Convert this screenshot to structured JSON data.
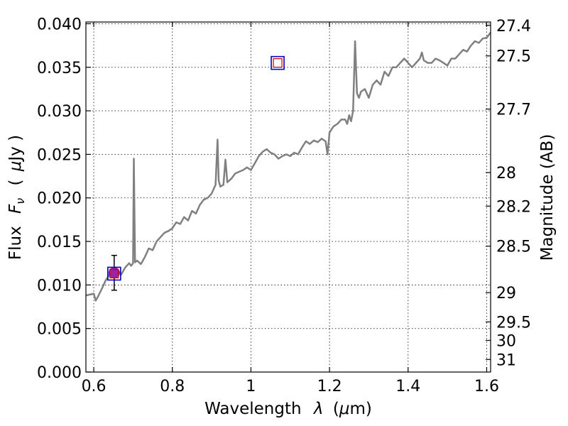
{
  "colors": {
    "spectrum": "#808080",
    "point_fill": "#a020a0",
    "square_outer": "#0000cc",
    "square_inner": "#cc0000",
    "errorbar": "#000000"
  },
  "chart_data": {
    "type": "line",
    "title": "",
    "xlabel_main": "Wavelength",
    "xlabel_symbol": "λ",
    "xlabel_unit_open": "(",
    "xlabel_unit_mu": "μ",
    "xlabel_unit_rest": "m)",
    "ylabel_main": "Flux",
    "ylabel_symbol": "F",
    "ylabel_symbol_sub": "ν",
    "ylabel_unit_open": "(",
    "ylabel_unit_mu": "μ",
    "ylabel_unit_rest": "Jy )",
    "y2label": "Magnitude (AB)",
    "xlim": [
      0.58,
      1.61
    ],
    "ylim": [
      0.0,
      0.0402
    ],
    "grid": true,
    "x_ticks": [
      0.6,
      0.8,
      1.0,
      1.2,
      1.4,
      1.6
    ],
    "x_tick_labels": [
      "0.6",
      "0.8",
      "1",
      "1.2",
      "1.4",
      "1.6"
    ],
    "y_ticks": [
      0.0,
      0.005,
      0.01,
      0.015,
      0.02,
      0.025,
      0.03,
      0.035,
      0.04
    ],
    "y_tick_labels": [
      "0.000",
      "0.005",
      "0.010",
      "0.015",
      "0.020",
      "0.025",
      "0.030",
      "0.035",
      "0.040"
    ],
    "y2_ticks": [
      27.4,
      27.5,
      27.7,
      28,
      28.2,
      28.5,
      29,
      29.5,
      30,
      31
    ],
    "y2_tick_labels": [
      "27.4",
      "27.5",
      "27.7",
      "28",
      "28.2",
      "28.5",
      "29",
      "29.5",
      "30",
      "31"
    ],
    "series": [
      {
        "type": "line",
        "x": [
          0.58,
          0.59,
          0.6,
          0.605,
          0.61,
          0.62,
          0.63,
          0.64,
          0.65,
          0.66,
          0.67,
          0.68,
          0.69,
          0.695,
          0.7,
          0.702,
          0.705,
          0.71,
          0.72,
          0.73,
          0.74,
          0.75,
          0.76,
          0.77,
          0.78,
          0.79,
          0.8,
          0.81,
          0.82,
          0.83,
          0.84,
          0.85,
          0.86,
          0.87,
          0.88,
          0.89,
          0.9,
          0.91,
          0.915,
          0.918,
          0.922,
          0.93,
          0.935,
          0.94,
          0.945,
          0.95,
          0.96,
          0.97,
          0.98,
          0.99,
          1.0,
          1.01,
          1.02,
          1.03,
          1.04,
          1.05,
          1.06,
          1.07,
          1.08,
          1.09,
          1.1,
          1.11,
          1.12,
          1.13,
          1.14,
          1.15,
          1.16,
          1.17,
          1.18,
          1.19,
          1.195,
          1.2,
          1.21,
          1.22,
          1.23,
          1.24,
          1.245,
          1.25,
          1.255,
          1.26,
          1.265,
          1.27,
          1.275,
          1.28,
          1.29,
          1.3,
          1.31,
          1.32,
          1.33,
          1.34,
          1.35,
          1.36,
          1.37,
          1.38,
          1.39,
          1.4,
          1.41,
          1.42,
          1.43,
          1.435,
          1.44,
          1.45,
          1.46,
          1.47,
          1.48,
          1.49,
          1.5,
          1.51,
          1.52,
          1.53,
          1.54,
          1.55,
          1.56,
          1.57,
          1.58,
          1.59,
          1.6,
          1.61
        ],
        "y": [
          0.0088,
          0.0089,
          0.009,
          0.0082,
          0.0086,
          0.0095,
          0.0105,
          0.0112,
          0.0115,
          0.0117,
          0.0112,
          0.012,
          0.0125,
          0.0122,
          0.0125,
          0.0245,
          0.0126,
          0.0128,
          0.0124,
          0.0132,
          0.0142,
          0.014,
          0.015,
          0.0155,
          0.016,
          0.0162,
          0.0165,
          0.0172,
          0.017,
          0.0178,
          0.0174,
          0.0185,
          0.0182,
          0.0192,
          0.0198,
          0.02,
          0.0205,
          0.0215,
          0.0267,
          0.022,
          0.0213,
          0.0215,
          0.0244,
          0.0218,
          0.022,
          0.0222,
          0.0228,
          0.023,
          0.0232,
          0.0235,
          0.0232,
          0.024,
          0.0248,
          0.0253,
          0.0256,
          0.0252,
          0.025,
          0.0245,
          0.0248,
          0.025,
          0.0248,
          0.0252,
          0.025,
          0.0258,
          0.0265,
          0.0262,
          0.0266,
          0.0264,
          0.0268,
          0.0265,
          0.025,
          0.0275,
          0.0282,
          0.0285,
          0.029,
          0.029,
          0.0285,
          0.0295,
          0.0288,
          0.03,
          0.038,
          0.032,
          0.0315,
          0.0322,
          0.0325,
          0.0315,
          0.033,
          0.0335,
          0.033,
          0.0345,
          0.034,
          0.035,
          0.035,
          0.0355,
          0.036,
          0.0355,
          0.035,
          0.0355,
          0.036,
          0.0367,
          0.0358,
          0.0355,
          0.0355,
          0.036,
          0.0358,
          0.0355,
          0.0352,
          0.036,
          0.036,
          0.0365,
          0.037,
          0.0368,
          0.0375,
          0.038,
          0.0378,
          0.0383,
          0.0384,
          0.039
        ]
      },
      {
        "type": "scatter",
        "marker": "square",
        "x": [
          0.652,
          1.068
        ],
        "y": [
          0.0113,
          0.0355
        ]
      },
      {
        "type": "scatter",
        "marker": "circle",
        "x": [
          0.652
        ],
        "y": [
          0.0114
        ],
        "yerr": [
          0.002
        ]
      }
    ]
  }
}
